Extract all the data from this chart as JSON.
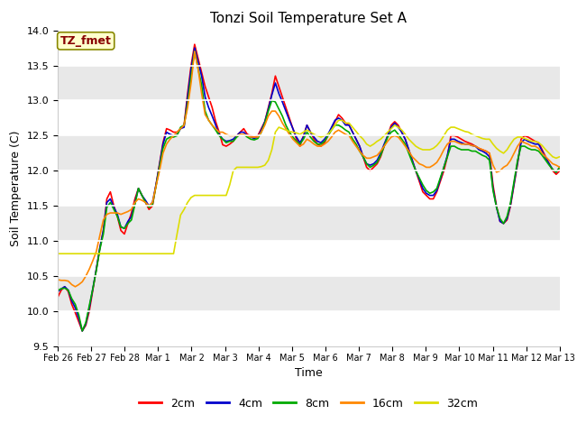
{
  "title": "Tonzi Soil Temperature Set A",
  "xlabel": "Time",
  "ylabel": "Soil Temperature (C)",
  "ylim": [
    9.5,
    14.0
  ],
  "annotation_text": "TZ_fmet",
  "annotation_color": "#880000",
  "annotation_bg": "#ffffcc",
  "annotation_edge": "#888800",
  "series_labels": [
    "2cm",
    "4cm",
    "8cm",
    "16cm",
    "32cm"
  ],
  "series_colors": [
    "#ff0000",
    "#0000cc",
    "#00aa00",
    "#ff8800",
    "#dddd00"
  ],
  "lw": 1.2,
  "xtick_labels": [
    "Feb 26",
    "Feb 27",
    "Feb 28",
    "Mar 1",
    "Mar 2",
    "Mar 3",
    "Mar 4",
    "Mar 5",
    "Mar 6",
    "Mar 7",
    "Mar 8",
    "Mar 9",
    "Mar 10",
    "Mar 11",
    "Mar 12",
    "Mar 13"
  ],
  "yticks": [
    9.5,
    10.0,
    10.5,
    11.0,
    11.5,
    12.0,
    12.5,
    13.0,
    13.5,
    14.0
  ],
  "band_colors": [
    "#ffffff",
    "#e8e8e8"
  ],
  "data_2cm": [
    10.2,
    10.3,
    10.35,
    10.28,
    10.1,
    9.98,
    9.85,
    9.72,
    9.8,
    10.0,
    10.3,
    10.6,
    10.9,
    11.15,
    11.6,
    11.7,
    11.5,
    11.35,
    11.15,
    11.1,
    11.25,
    11.4,
    11.6,
    11.75,
    11.65,
    11.55,
    11.45,
    11.5,
    11.8,
    12.1,
    12.4,
    12.6,
    12.58,
    12.55,
    12.55,
    12.6,
    12.65,
    13.1,
    13.5,
    13.8,
    13.6,
    13.4,
    13.2,
    13.05,
    12.9,
    12.7,
    12.55,
    12.37,
    12.35,
    12.38,
    12.42,
    12.5,
    12.55,
    12.6,
    12.52,
    12.5,
    12.48,
    12.5,
    12.6,
    12.7,
    12.9,
    13.1,
    13.35,
    13.2,
    13.05,
    12.9,
    12.75,
    12.6,
    12.45,
    12.35,
    12.5,
    12.65,
    12.55,
    12.45,
    12.38,
    12.35,
    12.4,
    12.5,
    12.6,
    12.7,
    12.8,
    12.75,
    12.68,
    12.65,
    12.55,
    12.45,
    12.35,
    12.2,
    12.05,
    12.0,
    12.05,
    12.1,
    12.2,
    12.35,
    12.5,
    12.65,
    12.7,
    12.65,
    12.55,
    12.45,
    12.3,
    12.15,
    12.0,
    11.85,
    11.7,
    11.65,
    11.6,
    11.6,
    11.7,
    11.85,
    12.0,
    12.2,
    12.5,
    12.5,
    12.48,
    12.45,
    12.42,
    12.4,
    12.38,
    12.35,
    12.32,
    12.3,
    12.28,
    12.25,
    11.8,
    11.5,
    11.28,
    11.25,
    11.3,
    11.5,
    11.8,
    12.1,
    12.45,
    12.5,
    12.48,
    12.45,
    12.42,
    12.4,
    12.3,
    12.2,
    12.1,
    12.0,
    11.95,
    12.0
  ],
  "data_4cm": [
    10.28,
    10.32,
    10.35,
    10.3,
    10.15,
    10.05,
    9.9,
    9.72,
    9.82,
    10.05,
    10.32,
    10.6,
    10.9,
    11.15,
    11.55,
    11.6,
    11.48,
    11.38,
    11.2,
    11.18,
    11.28,
    11.35,
    11.55,
    11.75,
    11.65,
    11.58,
    11.5,
    11.55,
    11.8,
    12.08,
    12.38,
    12.55,
    12.52,
    12.5,
    12.52,
    12.6,
    12.62,
    13.05,
    13.45,
    13.75,
    13.55,
    13.35,
    13.05,
    12.9,
    12.78,
    12.65,
    12.52,
    12.45,
    12.42,
    12.43,
    12.45,
    12.5,
    12.55,
    12.55,
    12.5,
    12.48,
    12.46,
    12.48,
    12.58,
    12.7,
    12.88,
    13.08,
    13.25,
    13.1,
    12.98,
    12.85,
    12.72,
    12.6,
    12.48,
    12.4,
    12.48,
    12.65,
    12.55,
    12.48,
    12.42,
    12.4,
    12.45,
    12.52,
    12.62,
    12.72,
    12.75,
    12.72,
    12.65,
    12.65,
    12.55,
    12.45,
    12.35,
    12.2,
    12.1,
    12.08,
    12.1,
    12.15,
    12.25,
    12.38,
    12.5,
    12.62,
    12.68,
    12.62,
    12.55,
    12.45,
    12.3,
    12.15,
    12.0,
    11.88,
    11.75,
    11.68,
    11.65,
    11.65,
    11.72,
    11.88,
    12.05,
    12.22,
    12.45,
    12.45,
    12.42,
    12.4,
    12.38,
    12.38,
    12.36,
    12.35,
    12.3,
    12.28,
    12.25,
    12.2,
    11.75,
    11.48,
    11.28,
    11.25,
    11.32,
    11.52,
    11.82,
    12.12,
    12.4,
    12.45,
    12.42,
    12.4,
    12.38,
    12.38,
    12.28,
    12.18,
    12.1,
    12.02,
    11.98,
    12.05
  ],
  "data_8cm": [
    10.3,
    10.32,
    10.33,
    10.3,
    10.18,
    10.1,
    9.95,
    9.72,
    9.84,
    10.08,
    10.32,
    10.58,
    10.88,
    11.1,
    11.48,
    11.55,
    11.45,
    11.35,
    11.2,
    11.18,
    11.25,
    11.3,
    11.52,
    11.75,
    11.65,
    11.55,
    11.48,
    11.52,
    11.78,
    12.05,
    12.32,
    12.45,
    12.48,
    12.48,
    12.5,
    12.62,
    12.65,
    12.95,
    13.35,
    13.7,
    13.45,
    13.22,
    12.85,
    12.72,
    12.65,
    12.58,
    12.5,
    12.45,
    12.4,
    12.42,
    12.42,
    12.48,
    12.52,
    12.52,
    12.48,
    12.45,
    12.44,
    12.46,
    12.55,
    12.68,
    12.85,
    13.0,
    12.98,
    12.88,
    12.78,
    12.65,
    12.55,
    12.48,
    12.42,
    12.38,
    12.45,
    12.55,
    12.48,
    12.42,
    12.38,
    12.38,
    12.42,
    12.5,
    12.58,
    12.65,
    12.65,
    12.62,
    12.58,
    12.55,
    12.45,
    12.38,
    12.28,
    12.2,
    12.1,
    12.05,
    12.08,
    12.12,
    12.22,
    12.35,
    12.48,
    12.55,
    12.58,
    12.52,
    12.45,
    12.38,
    12.25,
    12.12,
    12.0,
    11.9,
    11.8,
    11.72,
    11.68,
    11.7,
    11.75,
    11.9,
    12.05,
    12.2,
    12.35,
    12.35,
    12.32,
    12.3,
    12.3,
    12.3,
    12.28,
    12.28,
    12.25,
    12.22,
    12.2,
    12.15,
    11.72,
    11.48,
    11.32,
    11.25,
    11.35,
    11.55,
    11.85,
    12.15,
    12.35,
    12.35,
    12.32,
    12.3,
    12.3,
    12.28,
    12.22,
    12.15,
    12.08,
    12.02,
    11.98,
    12.05
  ],
  "data_16cm": [
    10.45,
    10.44,
    10.44,
    10.43,
    10.38,
    10.35,
    10.38,
    10.42,
    10.5,
    10.6,
    10.72,
    10.85,
    11.08,
    11.3,
    11.38,
    11.4,
    11.4,
    11.4,
    11.38,
    11.4,
    11.42,
    11.45,
    11.55,
    11.6,
    11.58,
    11.55,
    11.5,
    11.55,
    11.78,
    12.0,
    12.25,
    12.38,
    12.45,
    12.5,
    12.55,
    12.6,
    12.65,
    12.9,
    13.25,
    13.7,
    13.45,
    13.1,
    12.8,
    12.72,
    12.65,
    12.6,
    12.55,
    12.55,
    12.52,
    12.5,
    12.5,
    12.5,
    12.52,
    12.52,
    12.5,
    12.48,
    12.48,
    12.48,
    12.55,
    12.65,
    12.78,
    12.85,
    12.85,
    12.78,
    12.68,
    12.6,
    12.52,
    12.45,
    12.4,
    12.35,
    12.38,
    12.45,
    12.42,
    12.38,
    12.35,
    12.35,
    12.38,
    12.42,
    12.48,
    12.55,
    12.58,
    12.55,
    12.52,
    12.5,
    12.42,
    12.35,
    12.28,
    12.22,
    12.18,
    12.18,
    12.2,
    12.22,
    12.28,
    12.35,
    12.42,
    12.48,
    12.5,
    12.48,
    12.42,
    12.35,
    12.28,
    12.2,
    12.15,
    12.1,
    12.08,
    12.05,
    12.05,
    12.08,
    12.12,
    12.2,
    12.3,
    12.38,
    12.42,
    12.42,
    12.4,
    12.38,
    12.38,
    12.38,
    12.36,
    12.35,
    12.32,
    12.3,
    12.28,
    12.25,
    12.08,
    11.98,
    12.0,
    12.05,
    12.08,
    12.15,
    12.25,
    12.35,
    12.42,
    12.4,
    12.38,
    12.35,
    12.35,
    12.32,
    12.25,
    12.2,
    12.15,
    12.1,
    12.08,
    12.05
  ],
  "data_32cm": [
    10.82,
    10.82,
    10.82,
    10.82,
    10.82,
    10.82,
    10.82,
    10.82,
    10.82,
    10.82,
    10.82,
    10.82,
    10.82,
    10.82,
    10.82,
    10.82,
    10.82,
    10.82,
    10.82,
    10.82,
    10.82,
    10.82,
    10.82,
    10.82,
    10.82,
    10.82,
    10.82,
    10.82,
    10.82,
    10.82,
    10.82,
    10.82,
    10.82,
    10.82,
    11.1,
    11.37,
    11.45,
    11.55,
    11.62,
    11.65,
    11.65,
    11.65,
    11.65,
    11.65,
    11.65,
    11.65,
    11.65,
    11.65,
    11.65,
    11.8,
    12.0,
    12.05,
    12.05,
    12.05,
    12.05,
    12.05,
    12.05,
    12.05,
    12.06,
    12.08,
    12.15,
    12.3,
    12.55,
    12.62,
    12.6,
    12.58,
    12.56,
    12.55,
    12.54,
    12.52,
    12.55,
    12.58,
    12.55,
    12.52,
    12.5,
    12.48,
    12.5,
    12.52,
    12.58,
    12.65,
    12.72,
    12.72,
    12.68,
    12.68,
    12.62,
    12.56,
    12.5,
    12.45,
    12.38,
    12.35,
    12.38,
    12.42,
    12.45,
    12.5,
    12.55,
    12.6,
    12.65,
    12.62,
    12.58,
    12.52,
    12.45,
    12.4,
    12.35,
    12.32,
    12.3,
    12.3,
    12.3,
    12.32,
    12.36,
    12.42,
    12.5,
    12.58,
    12.62,
    12.62,
    12.6,
    12.58,
    12.56,
    12.55,
    12.52,
    12.5,
    12.48,
    12.46,
    12.45,
    12.45,
    12.38,
    12.32,
    12.28,
    12.25,
    12.3,
    12.38,
    12.45,
    12.48,
    12.48,
    12.46,
    12.44,
    12.42,
    12.42,
    12.4,
    12.36,
    12.3,
    12.25,
    12.2,
    12.18,
    12.2
  ]
}
